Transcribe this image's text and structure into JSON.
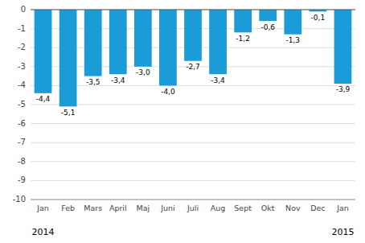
{
  "chart_data": {
    "type": "bar",
    "categories": [
      "Jan",
      "Feb",
      "Mars",
      "April",
      "Maj",
      "Juni",
      "Juli",
      "Aug",
      "Sept",
      "Okt",
      "Nov",
      "Dec",
      "Jan"
    ],
    "values": [
      -4.4,
      -5.1,
      -3.5,
      -3.4,
      -3.0,
      -4.0,
      -2.7,
      -3.4,
      -1.2,
      -0.6,
      -1.3,
      -0.1,
      -3.9
    ],
    "value_labels": [
      "-4,4",
      "-5,1",
      "-3,5",
      "-3,4",
      "-3,0",
      "-4,0",
      "-2,7",
      "-3,4",
      "-1,2",
      "-0,6",
      "-1,3",
      "-0,1",
      "-3,9"
    ],
    "data_labels": true,
    "color": "#1b9cd8",
    "ylim": [
      -10,
      0
    ],
    "yticks": [
      0,
      -1,
      -2,
      -3,
      -4,
      -5,
      -6,
      -7,
      -8,
      -9,
      -10
    ],
    "grid": true,
    "annotations": [
      "2014",
      "2015"
    ]
  }
}
